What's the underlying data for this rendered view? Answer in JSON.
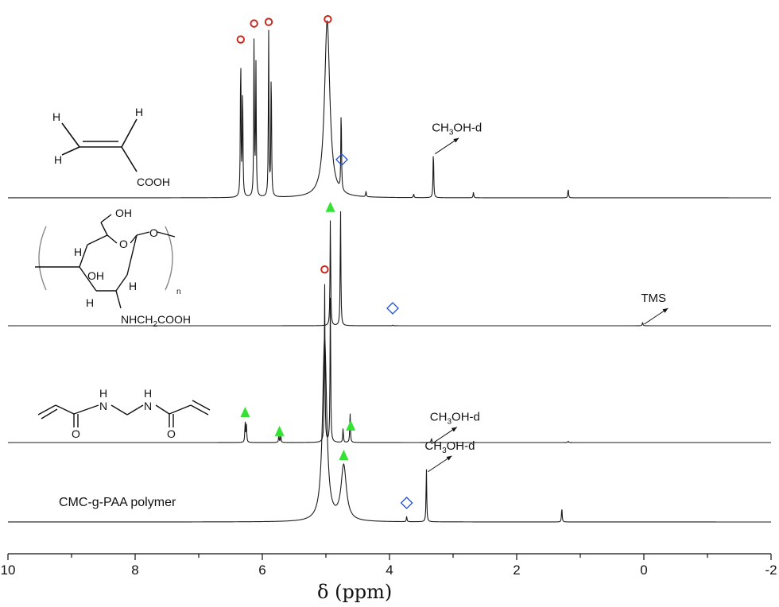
{
  "chart_data": {
    "type": "line",
    "title": "",
    "xlabel": "δ (ppm)",
    "ylabel": "",
    "xlim": [
      10,
      -2
    ],
    "x_reversed": true,
    "x_ticks": [
      10,
      8,
      6,
      4,
      2,
      0,
      -2
    ],
    "grid": false,
    "series": [
      {
        "peaks": [
          {
            "x": 6.34,
            "h": 0.78
          },
          {
            "x": 6.31,
            "h": 0.6
          },
          {
            "x": 6.13,
            "h": 0.86
          },
          {
            "x": 6.1,
            "h": 0.7
          },
          {
            "x": 5.9,
            "h": 0.88
          },
          {
            "x": 5.86,
            "h": 0.7
          },
          {
            "x": 4.98,
            "h": 0.95,
            "w": 0.05
          },
          {
            "x": 4.76,
            "h": 0.45
          },
          {
            "x": 4.37,
            "h": 0.03
          },
          {
            "x": 3.62,
            "h": 0.02
          },
          {
            "x": 3.31,
            "h": 0.26
          },
          {
            "x": 2.68,
            "h": 0.03
          },
          {
            "x": 1.19,
            "h": 0.05
          }
        ],
        "markers": [
          {
            "x": 6.34,
            "shape": "circle"
          },
          {
            "x": 6.13,
            "shape": "circle"
          },
          {
            "x": 5.9,
            "shape": "circle"
          },
          {
            "x": 4.97,
            "shape": "circle"
          },
          {
            "x": 4.75,
            "shape": "diamond"
          }
        ],
        "annotations": [
          {
            "x": 3.31,
            "text_main": "CH",
            "text_sub": "3",
            "text_tail": "OH-d"
          }
        ]
      },
      {
        "peaks": [
          {
            "x": 4.93,
            "h": 0.92
          },
          {
            "x": 4.77,
            "h": 1.0
          },
          {
            "x": 3.95,
            "h": 0.005
          },
          {
            "x": 0.02,
            "h": 0.03
          }
        ],
        "markers": [
          {
            "x": 4.93,
            "shape": "triangle"
          },
          {
            "x": 3.95,
            "shape": "diamond"
          }
        ],
        "annotations": [
          {
            "x": 0.02,
            "text_main": "TMS",
            "text_sub": "",
            "text_tail": ""
          }
        ]
      },
      {
        "peaks": [
          {
            "x": 5.02,
            "h": 1.15
          },
          {
            "x": 4.93,
            "h": 1.05
          },
          {
            "x": 6.27,
            "h": 0.14
          },
          {
            "x": 6.25,
            "h": 0.12
          },
          {
            "x": 5.74,
            "h": 0.05
          },
          {
            "x": 5.71,
            "h": 0.05
          },
          {
            "x": 4.73,
            "h": 0.1
          },
          {
            "x": 4.62,
            "h": 0.21
          },
          {
            "x": 3.34,
            "h": 0.03
          },
          {
            "x": 1.19,
            "h": 0.01
          }
        ],
        "markers": [
          {
            "x": 5.02,
            "shape": "circle"
          },
          {
            "x": 6.27,
            "shape": "triangle"
          },
          {
            "x": 5.73,
            "shape": "triangle"
          },
          {
            "x": 4.61,
            "shape": "triangle"
          }
        ],
        "annotations": [
          {
            "x": 3.34,
            "text_main": "CH",
            "text_sub": "3",
            "text_tail": "OH-d"
          }
        ]
      },
      {
        "peaks": [
          {
            "x": 5.02,
            "h": 1.0,
            "w": 0.04
          },
          {
            "x": 4.72,
            "h": 0.3,
            "w": 0.05
          },
          {
            "x": 3.73,
            "h": 0.03
          },
          {
            "x": 3.42,
            "h": 0.3
          },
          {
            "x": 1.29,
            "h": 0.08
          }
        ],
        "markers": [
          {
            "x": 4.72,
            "shape": "triangle"
          },
          {
            "x": 3.73,
            "shape": "diamond"
          }
        ],
        "annotations": [
          {
            "x": 3.42,
            "text_main": "CH",
            "text_sub": "3",
            "text_tail": "OH-d"
          }
        ]
      }
    ],
    "structures": {
      "acrylic_acid": {
        "h_labels": [
          "H",
          "H",
          "H"
        ],
        "cooh_label": "COOH"
      },
      "cmc": {
        "oh_top": "OH",
        "oh_mid": "OH",
        "h_labels": [
          "H",
          "H",
          "H"
        ],
        "o_ring": "O",
        "o_link": "O",
        "n_label": "n",
        "side_chain_1": "NHCH",
        "side_chain_sub": "2",
        "side_chain_2": "COOH"
      },
      "mba": {
        "nh_label": "H",
        "n_label": "N",
        "o_label": "O"
      }
    },
    "polymer_label": "CMC-g-PAA polymer",
    "colors": {
      "line": "#1a1a1a",
      "circle": "#c8281e",
      "triangle": "#33e233",
      "diamond": "#1f4fd8"
    }
  }
}
